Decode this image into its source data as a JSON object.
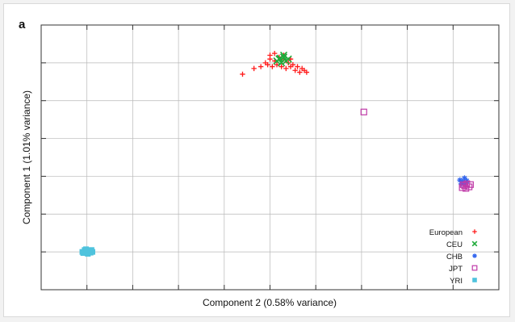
{
  "panel_label": "a",
  "chart_data": {
    "type": "scatter",
    "xlabel": "Component 2 (0.58% variance)",
    "ylabel": "Component 1 (1.01% variance)",
    "xlim": [
      0,
      10
    ],
    "ylim": [
      0,
      7
    ],
    "grid": true,
    "tick_labels_shown": false,
    "legend_position": "bottom-right",
    "series": [
      {
        "name": "European",
        "marker": "plus",
        "color": "#ff1a1a",
        "points": [
          [
            4.4,
            5.7
          ],
          [
            4.65,
            5.85
          ],
          [
            4.8,
            5.9
          ],
          [
            4.9,
            6.0
          ],
          [
            5.0,
            6.1
          ],
          [
            5.1,
            6.05
          ],
          [
            5.2,
            6.15
          ],
          [
            5.3,
            6.1
          ],
          [
            5.4,
            6.0
          ],
          [
            5.5,
            5.95
          ],
          [
            5.6,
            5.9
          ],
          [
            5.7,
            5.85
          ],
          [
            5.75,
            5.8
          ],
          [
            5.8,
            5.75
          ],
          [
            5.35,
            5.85
          ],
          [
            5.25,
            5.9
          ],
          [
            5.15,
            5.95
          ],
          [
            5.05,
            5.9
          ],
          [
            4.95,
            5.95
          ],
          [
            5.45,
            5.9
          ],
          [
            5.55,
            5.8
          ],
          [
            5.65,
            5.75
          ],
          [
            5.0,
            6.2
          ],
          [
            5.1,
            6.25
          ],
          [
            5.3,
            6.2
          ],
          [
            5.45,
            6.1
          ]
        ]
      },
      {
        "name": "CEU",
        "marker": "cross",
        "color": "#1faa3a",
        "points": [
          [
            5.2,
            6.1
          ],
          [
            5.3,
            6.15
          ],
          [
            5.35,
            6.05
          ],
          [
            5.25,
            6.0
          ],
          [
            5.15,
            6.05
          ],
          [
            5.4,
            6.1
          ],
          [
            5.3,
            6.2
          ],
          [
            5.22,
            6.12
          ]
        ]
      },
      {
        "name": "CHB",
        "marker": "star",
        "color": "#3366ee",
        "points": [
          [
            9.15,
            2.9
          ],
          [
            9.2,
            2.85
          ],
          [
            9.25,
            2.95
          ],
          [
            9.3,
            2.88
          ],
          [
            9.18,
            2.8
          ],
          [
            9.28,
            2.82
          ]
        ]
      },
      {
        "name": "JPT",
        "marker": "square-open",
        "color": "#c03aa8",
        "points": [
          [
            7.05,
            4.7
          ],
          [
            9.25,
            2.75
          ],
          [
            9.3,
            2.8
          ],
          [
            9.35,
            2.72
          ],
          [
            9.2,
            2.7
          ],
          [
            9.28,
            2.68
          ],
          [
            9.38,
            2.78
          ],
          [
            9.22,
            2.78
          ]
        ]
      },
      {
        "name": "YRI",
        "marker": "square-filled",
        "color": "#4fc3dd",
        "points": [
          [
            0.9,
            1.0
          ],
          [
            0.95,
            1.05
          ],
          [
            1.0,
            1.0
          ],
          [
            1.05,
            1.02
          ],
          [
            1.1,
            1.05
          ],
          [
            0.92,
            0.97
          ],
          [
            1.02,
            0.95
          ],
          [
            1.08,
            0.98
          ],
          [
            0.98,
            1.07
          ],
          [
            1.12,
            1.0
          ]
        ]
      }
    ]
  }
}
